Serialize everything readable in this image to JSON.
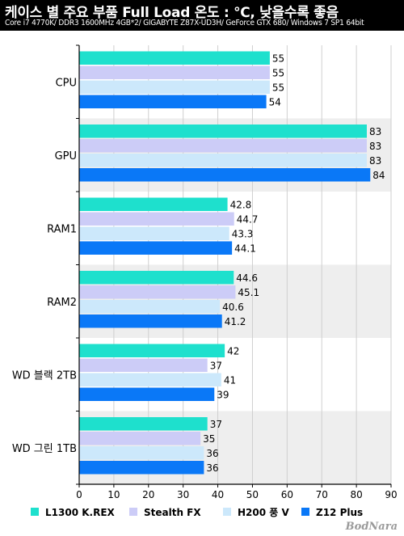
{
  "header": {
    "title": "케이스 별 주요 부품 Full Load 온도 : ℃, 낮을수록 좋음",
    "subtitle": "Core i7 4770K/ DDR3 1600MHz 4GB*2/ GIGABYTE Z87X-UD3H/ GeForce GTX 680/ Windows 7 SP1 64bit"
  },
  "watermark": "BodNara",
  "colors": {
    "band": "#eeeeee",
    "grid": "#cfcfcf",
    "axis": "#000000"
  },
  "chart_data": {
    "type": "bar",
    "orientation": "horizontal",
    "title": "케이스 별 주요 부품 Full Load 온도 : ℃, 낮을수록 좋음",
    "subtitle": "Core i7 4770K/ DDR3 1600MHz 4GB*2/ GIGABYTE Z87X-UD3H/ GeForce GTX 680/ Windows 7 SP1 64bit",
    "categories": [
      "CPU",
      "GPU",
      "RAM1",
      "RAM2",
      "WD 블랙 2TB",
      "WD 그린 1TB"
    ],
    "series": [
      {
        "name": "L1300 K.REX",
        "color": "#1ee0cd",
        "values": [
          55,
          83,
          42.8,
          44.6,
          42,
          37
        ],
        "labels": [
          "55",
          "83",
          "42.8",
          "44.6",
          "42",
          "37"
        ]
      },
      {
        "name": "Stealth FX",
        "color": "#ccccf7",
        "values": [
          55,
          83,
          44.7,
          45.1,
          37,
          35
        ],
        "labels": [
          "55",
          "83",
          "44.7",
          "45.1",
          "37",
          "35"
        ]
      },
      {
        "name": "H200 풍 V",
        "color": "#cce8fb",
        "values": [
          55,
          83,
          43.3,
          40.6,
          41,
          36
        ],
        "labels": [
          "55",
          "83",
          "43.3",
          "40.6",
          "41",
          "36"
        ]
      },
      {
        "name": "Z12 Plus",
        "color": "#0a78f7",
        "values": [
          54,
          84,
          44.1,
          41.2,
          39,
          36
        ],
        "labels": [
          "54",
          "84",
          "44.1",
          "41.2",
          "39",
          "36"
        ]
      }
    ],
    "xlim": [
      0,
      90
    ],
    "xticks": [
      "0",
      "10",
      "20",
      "30",
      "40",
      "50",
      "60",
      "70",
      "80",
      "90"
    ],
    "grid": true,
    "legend": "bottom"
  }
}
